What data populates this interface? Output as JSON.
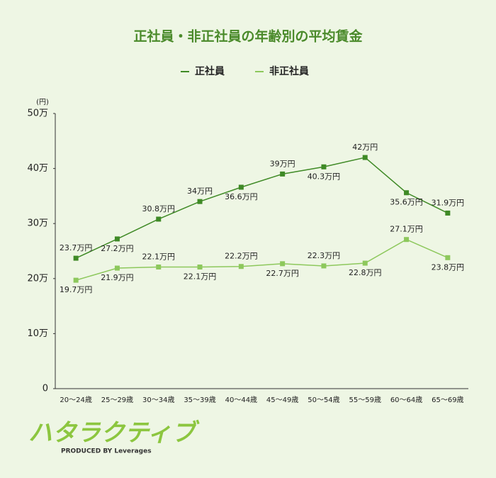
{
  "chart_data": {
    "type": "line",
    "title": "正社員・非正社員の年齢別の平均賃金",
    "y_unit": "(円)",
    "categories": [
      "20〜24歳",
      "25〜29歳",
      "30〜34歳",
      "35〜39歳",
      "40〜44歳",
      "45〜49歳",
      "50〜54歳",
      "55〜59歳",
      "60〜64歳",
      "65〜69歳"
    ],
    "series": [
      {
        "name": "正社員",
        "color": "#3f8a26",
        "values": [
          23.7,
          27.2,
          30.8,
          34,
          36.6,
          39,
          40.3,
          42,
          35.6,
          31.9
        ],
        "value_labels": [
          "23.7万円",
          "27.2万円",
          "30.8万円",
          "34万円",
          "36.6万円",
          "39万円",
          "40.3万円",
          "42万円",
          "35.6万円",
          "31.9万円"
        ]
      },
      {
        "name": "非正社員",
        "color": "#8dc85c",
        "values": [
          19.7,
          21.9,
          22.1,
          22.1,
          22.2,
          22.7,
          22.3,
          22.8,
          27.1,
          23.8
        ],
        "value_labels": [
          "19.7万円",
          "21.9万円",
          "22.1万円",
          "22.1万円",
          "22.2万円",
          "22.7万円",
          "22.3万円",
          "22.8万円",
          "27.1万円",
          "23.8万円"
        ]
      }
    ],
    "ylim": [
      0,
      50
    ],
    "yticks": [
      0,
      {
        "value": 10,
        "label": "10万"
      },
      {
        "value": 20,
        "label": "20万"
      },
      {
        "value": 30,
        "label": "30万"
      },
      {
        "value": 40,
        "label": "40万"
      },
      {
        "value": 50,
        "label": "50万"
      }
    ],
    "legend": "top"
  },
  "logo": {
    "name": "ハタラクティブ",
    "credit": "PRODUCED BY Leverages"
  }
}
